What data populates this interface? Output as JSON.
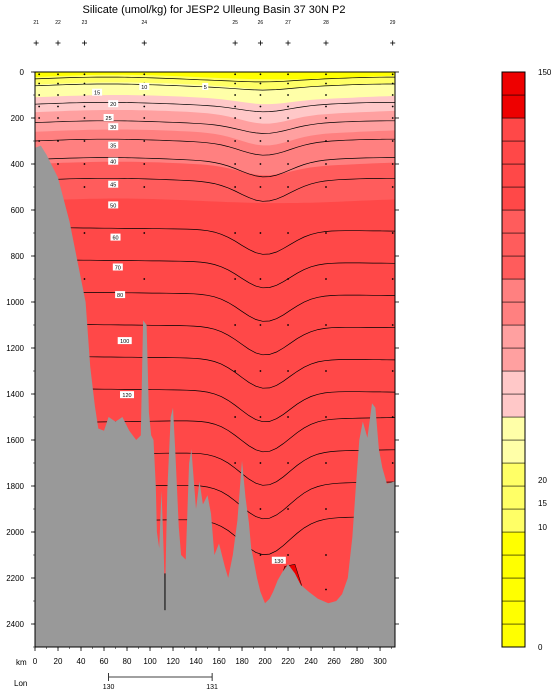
{
  "chart_data": {
    "type": "heatmap",
    "title": "Silicate (umol/kg) for JESP2 Ulleung Basin 37 30N P2",
    "x_unit_label": "km",
    "x_ticks": [
      0,
      20,
      40,
      60,
      80,
      100,
      120,
      140,
      160,
      180,
      200,
      220,
      240,
      260,
      280,
      300
    ],
    "xlim": [
      0,
      313
    ],
    "y_ticks": [
      0,
      200,
      400,
      600,
      800,
      1000,
      1200,
      1400,
      1600,
      1800,
      2000,
      2200,
      2400
    ],
    "ylim": [
      0,
      2500
    ],
    "y_inverted": true,
    "lon_label": "Lon",
    "lon_ticks": [
      {
        "km": 64,
        "label": "130"
      },
      {
        "km": 154,
        "label": "131"
      }
    ],
    "station_km": [
      1,
      20,
      43,
      95,
      174,
      196,
      220,
      253,
      311
    ],
    "station_labels": [
      "21",
      "22",
      "23",
      "24",
      "25",
      "26",
      "27",
      "28",
      "29"
    ],
    "contour_labels": [
      {
        "text": "5",
        "x": 148,
        "y": 65
      },
      {
        "text": "10",
        "x": 95,
        "y": 65
      },
      {
        "text": "15",
        "x": 54,
        "y": 90
      },
      {
        "text": "20",
        "x": 68,
        "y": 140
      },
      {
        "text": "25",
        "x": 64,
        "y": 200
      },
      {
        "text": "30",
        "x": 68,
        "y": 240
      },
      {
        "text": "35",
        "x": 68,
        "y": 320
      },
      {
        "text": "40",
        "x": 68,
        "y": 390
      },
      {
        "text": "45",
        "x": 68,
        "y": 490
      },
      {
        "text": "50",
        "x": 68,
        "y": 580
      },
      {
        "text": "60",
        "x": 70,
        "y": 720
      },
      {
        "text": "70",
        "x": 72,
        "y": 850
      },
      {
        "text": "80",
        "x": 74,
        "y": 970
      },
      {
        "text": "100",
        "x": 78,
        "y": 1170
      },
      {
        "text": "120",
        "x": 80,
        "y": 1405
      },
      {
        "text": "130",
        "x": 212,
        "y": 2125
      }
    ],
    "colorbar": {
      "min": 0,
      "max": 150,
      "labels": [
        {
          "value": 0,
          "text": "0"
        },
        {
          "value": 10,
          "text": "10"
        },
        {
          "value": 15,
          "text": "15"
        },
        {
          "value": 20,
          "text": "20"
        },
        {
          "value": 150,
          "text": "150"
        }
      ]
    }
  },
  "colors": {
    "land": "#999999",
    "yellow_light": "#ffffa8",
    "yellow": "#ffff66",
    "yellow_strong": "#ffff00",
    "pink_light": "#ffc8c8",
    "pink": "#ffa0a0",
    "salmon": "#ff8080",
    "red_light": "#ff5c5c",
    "red": "#ff4848",
    "red_dark": "#ee0000"
  }
}
